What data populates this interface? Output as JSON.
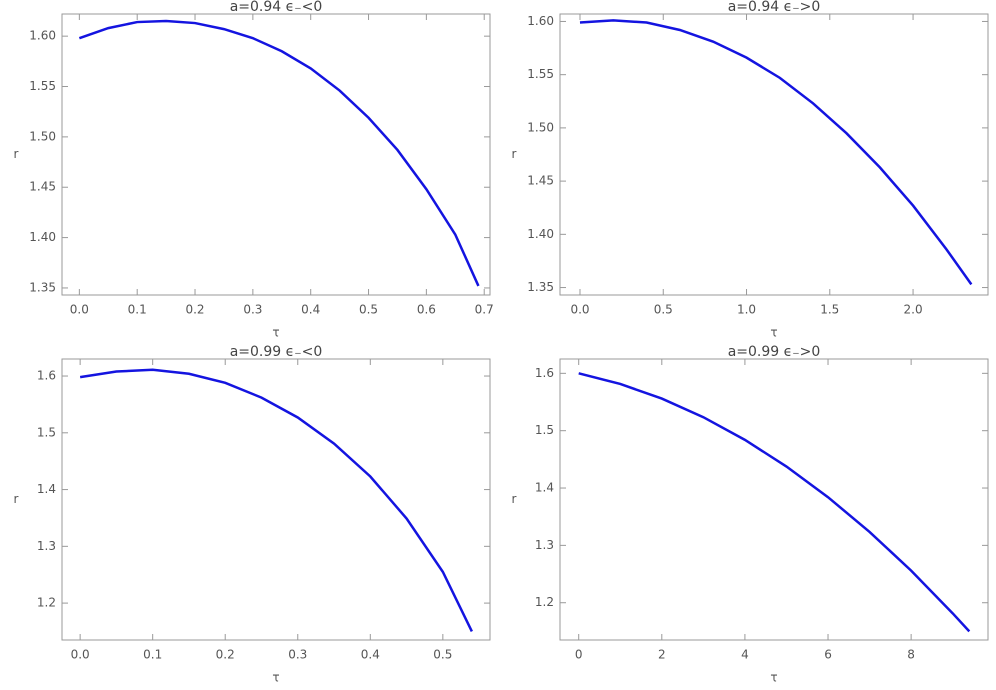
{
  "chart_data": [
    {
      "type": "line",
      "title": "a=0.94   ϵ₋<0",
      "x_label": "τ",
      "y_label": "r",
      "color": "#1414e0",
      "x": [
        0,
        0.05,
        0.1,
        0.15,
        0.2,
        0.25,
        0.3,
        0.35,
        0.4,
        0.45,
        0.5,
        0.55,
        0.6,
        0.65,
        0.69
      ],
      "values": [
        1.598,
        1.608,
        1.614,
        1.615,
        1.613,
        1.607,
        1.598,
        1.585,
        1.568,
        1.546,
        1.519,
        1.487,
        1.448,
        1.403,
        1.352
      ],
      "xlim": [
        -0.03,
        0.71
      ],
      "ylim": [
        1.343,
        1.622
      ],
      "xticks": [
        {
          "value": 0,
          "label": "0.0"
        },
        0.1,
        0.2,
        0.3,
        0.4,
        0.5,
        0.6,
        0.7
      ],
      "yticks": [
        1.35,
        {
          "value": 1.4,
          "label": "1.40"
        },
        1.45,
        {
          "value": 1.5,
          "label": "1.50"
        },
        1.55,
        {
          "value": 1.6,
          "label": "1.60"
        }
      ]
    },
    {
      "type": "line",
      "title": "a=0.94   ϵ₋>0",
      "x_label": "τ",
      "y_label": "r",
      "color": "#1414e0",
      "x": [
        0,
        0.2,
        0.4,
        0.6,
        0.8,
        1.0,
        1.2,
        1.4,
        1.6,
        1.8,
        2.0,
        2.2,
        2.35
      ],
      "values": [
        1.599,
        1.601,
        1.599,
        1.592,
        1.581,
        1.566,
        1.547,
        1.523,
        1.495,
        1.463,
        1.427,
        1.386,
        1.353
      ],
      "xlim": [
        -0.12,
        2.45
      ],
      "ylim": [
        1.343,
        1.607
      ],
      "xticks": [
        {
          "value": 0,
          "label": "0.0"
        },
        0.5,
        {
          "value": 1,
          "label": "1.0"
        },
        1.5,
        {
          "value": 2,
          "label": "2.0"
        }
      ],
      "yticks": [
        1.35,
        {
          "value": 1.4,
          "label": "1.40"
        },
        1.45,
        {
          "value": 1.5,
          "label": "1.50"
        },
        1.55,
        {
          "value": 1.6,
          "label": "1.60"
        }
      ]
    },
    {
      "type": "line",
      "title": "a=0.99   ϵ₋<0",
      "x_label": "τ",
      "y_label": "r",
      "color": "#1414e0",
      "x": [
        0,
        0.05,
        0.1,
        0.15,
        0.2,
        0.25,
        0.3,
        0.35,
        0.4,
        0.45,
        0.5,
        0.54
      ],
      "values": [
        1.598,
        1.608,
        1.611,
        1.604,
        1.588,
        1.562,
        1.527,
        1.481,
        1.423,
        1.349,
        1.255,
        1.15
      ],
      "xlim": [
        -0.025,
        0.565
      ],
      "ylim": [
        1.135,
        1.63
      ],
      "xticks": [
        {
          "value": 0,
          "label": "0.0"
        },
        0.1,
        0.2,
        0.3,
        0.4,
        0.5
      ],
      "yticks": [
        1.2,
        1.3,
        1.4,
        1.5,
        1.6
      ]
    },
    {
      "type": "line",
      "title": "a=0.99   ϵ₋>0",
      "x_label": "τ",
      "y_label": "r",
      "color": "#1414e0",
      "x": [
        0,
        1,
        2,
        3,
        4,
        5,
        6,
        7,
        8,
        9,
        9.4
      ],
      "values": [
        1.6,
        1.5815,
        1.556,
        1.5235,
        1.484,
        1.4375,
        1.384,
        1.3235,
        1.256,
        1.1815,
        1.15
      ],
      "xlim": [
        -0.45,
        9.85
      ],
      "ylim": [
        1.135,
        1.625
      ],
      "xticks": [
        0,
        2,
        4,
        6,
        8
      ],
      "yticks": [
        1.2,
        1.3,
        1.4,
        1.5,
        1.6
      ]
    }
  ]
}
